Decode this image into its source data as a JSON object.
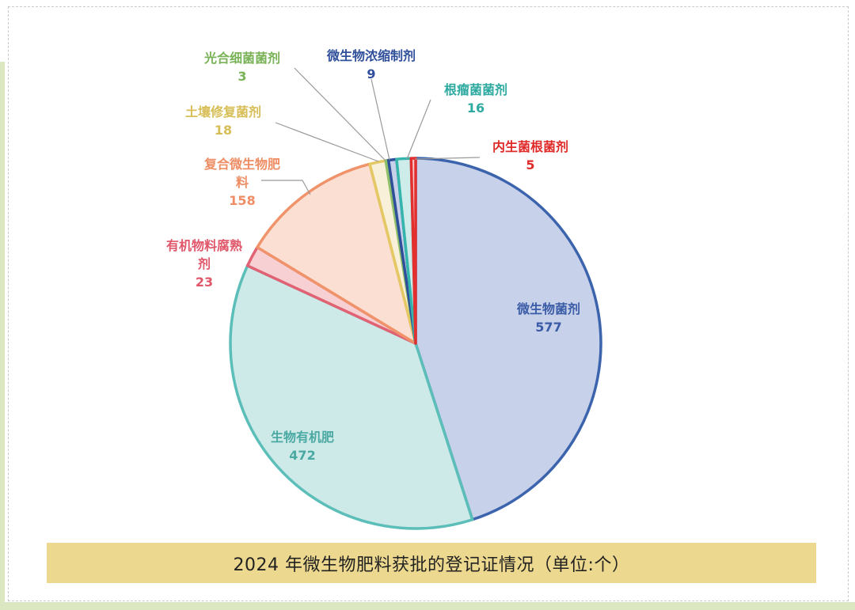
{
  "caption": "2024 年微生物肥料获批的登记证情况（单位:个）",
  "chart_data": {
    "type": "pie",
    "title": "2024 年微生物肥料获批的登记证情况（单位:个）",
    "legend": "none",
    "slices": [
      {
        "label": "微生物菌剂",
        "value": 577,
        "fill": "#c7d1ea",
        "stroke": "#3c64ad",
        "text_color": "#3b5ca6"
      },
      {
        "label": "生物有机肥",
        "value": 472,
        "fill": "#cde9e8",
        "stroke": "#5bbeb8",
        "text_color": "#4aa9a2"
      },
      {
        "label": "有机物料腐熟剂",
        "value": 23,
        "fill": "#f6d0d3",
        "stroke": "#e06273",
        "text_color": "#e0576a"
      },
      {
        "label": "复合微生物肥料",
        "value": 158,
        "fill": "#fbdfd2",
        "stroke": "#f0926a",
        "text_color": "#ef8d64"
      },
      {
        "label": "土壤修复菌剂",
        "value": 18,
        "fill": "#f8f0d8",
        "stroke": "#e3c864",
        "text_color": "#d8be57"
      },
      {
        "label": "光合细菌菌剂",
        "value": 3,
        "fill": "#e0eccd",
        "stroke": "#8dc06a",
        "text_color": "#79b257"
      },
      {
        "label": "微生物浓缩制剂",
        "value": 9,
        "fill": "#c7d1ea",
        "stroke": "#2f4f9a",
        "text_color": "#2f4f9a"
      },
      {
        "label": "根瘤菌菌剂",
        "value": 16,
        "fill": "#cdecea",
        "stroke": "#36b5ac",
        "text_color": "#2eaaa1"
      },
      {
        "label": "内生菌根菌剂",
        "value": 5,
        "fill": "#f6c9c9",
        "stroke": "#e3302f",
        "text_color": "#e02b2b"
      }
    ]
  }
}
